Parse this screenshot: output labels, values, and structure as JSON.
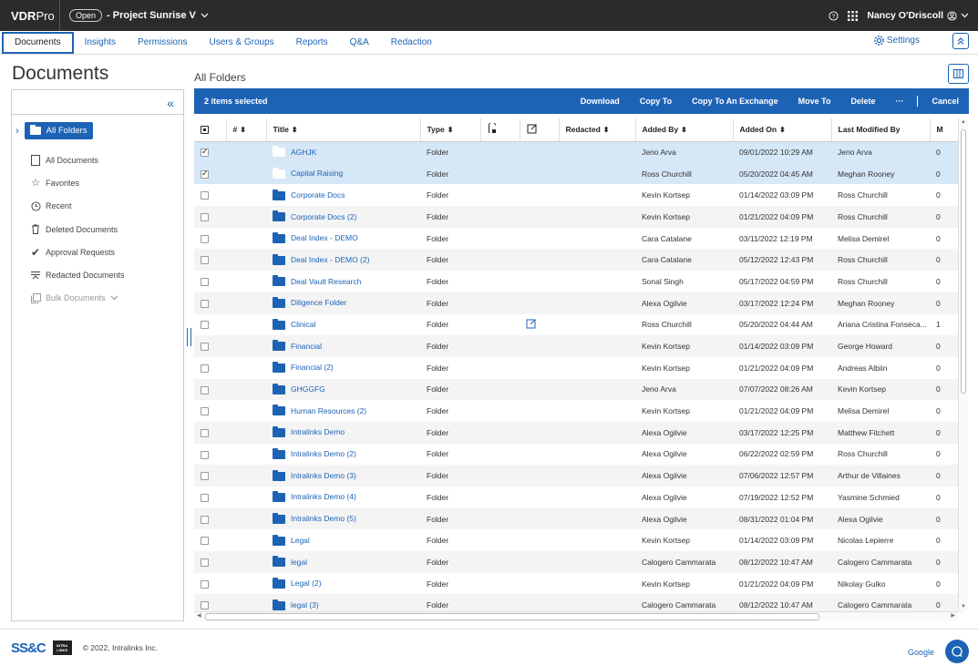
{
  "topbar": {
    "brand_main": "VDR",
    "brand_sub": "Pro",
    "open_badge": "Open",
    "project_name": "- Project Sunrise V",
    "user_name": "Nancy O'Driscoll"
  },
  "nav": {
    "tabs": [
      "Documents",
      "Insights",
      "Permissions",
      "Users & Groups",
      "Reports",
      "Q&A",
      "Redaction"
    ],
    "settings_label": "Settings"
  },
  "left": {
    "page_title": "Documents",
    "all_folders": "All Folders",
    "items": [
      {
        "label": "All Documents",
        "icon": "document-icon"
      },
      {
        "label": "Favorites",
        "icon": "star-icon"
      },
      {
        "label": "Recent",
        "icon": "clock-icon"
      },
      {
        "label": "Deleted Documents",
        "icon": "trash-icon"
      },
      {
        "label": "Approval Requests",
        "icon": "checkmark-icon"
      },
      {
        "label": "Redacted Documents",
        "icon": "redact-icon"
      },
      {
        "label": "Bulk Documents",
        "icon": "bulk-icon"
      }
    ]
  },
  "main": {
    "breadcrumb": "All Folders",
    "selection_text": "2 items selected",
    "actions": [
      "Download",
      "Copy To",
      "Copy To An Exchange",
      "Move To",
      "Delete",
      "···"
    ],
    "cancel_label": "Cancel",
    "columns": [
      "#",
      "Title",
      "Type",
      "Redacted",
      "Added By",
      "Added On",
      "Last Modified By",
      "M"
    ],
    "rows": [
      {
        "title": "AGHJK",
        "type": "Folder",
        "added_by": "Jeno Arva",
        "added_on": "09/01/2022 10:29 AM",
        "modified_by": "Jeno Arva",
        "m": "0",
        "selected": true,
        "checked": true,
        "note": false
      },
      {
        "title": "Capital Raising",
        "type": "Folder",
        "added_by": "Ross Churchill",
        "added_on": "05/20/2022 04:45 AM",
        "modified_by": "Meghan Rooney",
        "m": "0",
        "selected": true,
        "checked": true,
        "note": false
      },
      {
        "title": "Corporate Docs",
        "type": "Folder",
        "added_by": "Kevin Kortsep",
        "added_on": "01/14/2022 03:09 PM",
        "modified_by": "Ross Churchill",
        "m": "0",
        "selected": false,
        "checked": false,
        "note": false
      },
      {
        "title": "Corporate Docs (2)",
        "type": "Folder",
        "added_by": "Kevin Kortsep",
        "added_on": "01/21/2022 04:09 PM",
        "modified_by": "Ross Churchill",
        "m": "0",
        "selected": false,
        "checked": false,
        "note": false
      },
      {
        "title": "Deal Index - DEMO",
        "type": "Folder",
        "added_by": "Cara Catalane",
        "added_on": "03/11/2022 12:19 PM",
        "modified_by": "Melisa Demirel",
        "m": "0",
        "selected": false,
        "checked": false,
        "note": false
      },
      {
        "title": "Deal Index - DEMO (2)",
        "type": "Folder",
        "added_by": "Cara Catalane",
        "added_on": "05/12/2022 12:43 PM",
        "modified_by": "Ross Churchill",
        "m": "0",
        "selected": false,
        "checked": false,
        "note": false
      },
      {
        "title": "Deal Vault Research",
        "type": "Folder",
        "added_by": "Sonal Singh",
        "added_on": "05/17/2022 04:59 PM",
        "modified_by": "Ross Churchill",
        "m": "0",
        "selected": false,
        "checked": false,
        "note": false
      },
      {
        "title": "Diligence Folder",
        "type": "Folder",
        "added_by": "Alexa Ogilvie",
        "added_on": "03/17/2022 12:24 PM",
        "modified_by": "Meghan Rooney",
        "m": "0",
        "selected": false,
        "checked": false,
        "note": false
      },
      {
        "title": "Clinical",
        "type": "Folder",
        "added_by": "Ross Churchill",
        "added_on": "05/20/2022 04:44 AM",
        "modified_by": "Ariana Cristina Fonseca...",
        "m": "1",
        "selected": false,
        "checked": false,
        "note": true
      },
      {
        "title": "Financial",
        "type": "Folder",
        "added_by": "Kevin Kortsep",
        "added_on": "01/14/2022 03:09 PM",
        "modified_by": "George Howard",
        "m": "0",
        "selected": false,
        "checked": false,
        "note": false
      },
      {
        "title": "Financial (2)",
        "type": "Folder",
        "added_by": "Kevin Kortsep",
        "added_on": "01/21/2022 04:09 PM",
        "modified_by": "Andreas Albiin",
        "m": "0",
        "selected": false,
        "checked": false,
        "note": false
      },
      {
        "title": "GHGGFG",
        "type": "Folder",
        "added_by": "Jeno Arva",
        "added_on": "07/07/2022 08:26 AM",
        "modified_by": "Kevin Kortsep",
        "m": "0",
        "selected": false,
        "checked": false,
        "note": false
      },
      {
        "title": "Human Resources (2)",
        "type": "Folder",
        "added_by": "Kevin Kortsep",
        "added_on": "01/21/2022 04:09 PM",
        "modified_by": "Melisa Demirel",
        "m": "0",
        "selected": false,
        "checked": false,
        "note": false
      },
      {
        "title": "Intralinks Demo",
        "type": "Folder",
        "added_by": "Alexa Ogilvie",
        "added_on": "03/17/2022 12:25 PM",
        "modified_by": "Matthew Fitchett",
        "m": "0",
        "selected": false,
        "checked": false,
        "note": false
      },
      {
        "title": "Intralinks Demo (2)",
        "type": "Folder",
        "added_by": "Alexa Ogilvie",
        "added_on": "06/22/2022 02:59 PM",
        "modified_by": "Ross Churchill",
        "m": "0",
        "selected": false,
        "checked": false,
        "note": false
      },
      {
        "title": "Intralinks Demo (3)",
        "type": "Folder",
        "added_by": "Alexa Ogilvie",
        "added_on": "07/06/2022 12:57 PM",
        "modified_by": "Arthur de Villaines",
        "m": "0",
        "selected": false,
        "checked": false,
        "note": false
      },
      {
        "title": "Intralinks Demo (4)",
        "type": "Folder",
        "added_by": "Alexa Ogilvie",
        "added_on": "07/19/2022 12:52 PM",
        "modified_by": "Yasmine Schmied",
        "m": "0",
        "selected": false,
        "checked": false,
        "note": false
      },
      {
        "title": "Intralinks Demo (5)",
        "type": "Folder",
        "added_by": "Alexa Ogilvie",
        "added_on": "08/31/2022 01:04 PM",
        "modified_by": "Alexa Ogilvie",
        "m": "0",
        "selected": false,
        "checked": false,
        "note": false
      },
      {
        "title": "Legal",
        "type": "Folder",
        "added_by": "Kevin Kortsep",
        "added_on": "01/14/2022 03:09 PM",
        "modified_by": "Nicolas Lepierre",
        "m": "0",
        "selected": false,
        "checked": false,
        "note": false
      },
      {
        "title": "legal",
        "type": "Folder",
        "added_by": "Calogero Cammarata",
        "added_on": "08/12/2022 10:47 AM",
        "modified_by": "Calogero Cammarata",
        "m": "0",
        "selected": false,
        "checked": false,
        "note": false
      },
      {
        "title": "Legal (2)",
        "type": "Folder",
        "added_by": "Kevin Kortsep",
        "added_on": "01/21/2022 04:09 PM",
        "modified_by": "Nikolay Gulko",
        "m": "0",
        "selected": false,
        "checked": false,
        "note": false
      },
      {
        "title": "legal (3)",
        "type": "Folder",
        "added_by": "Calogero Cammarata",
        "added_on": "08/12/2022 10:47 AM",
        "modified_by": "Calogero Cammarata",
        "m": "0",
        "selected": false,
        "checked": false,
        "note": false
      }
    ]
  },
  "footer": {
    "ss_logo": "SS&C",
    "intralinks_logo": "INTRA LINKS",
    "copyright": "© 2022, Intralinks Inc.",
    "google_label": "Google"
  },
  "colors": {
    "brand_blue": "#1d63b5",
    "topbar_bg": "#2b2b2b",
    "selected_row": "#d6e7f7"
  }
}
